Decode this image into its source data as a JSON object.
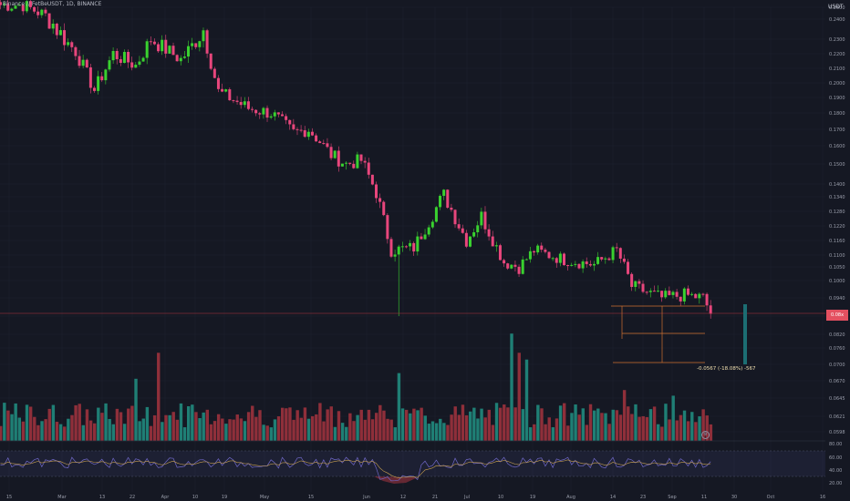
{
  "header": {
    "title": "Binance // FetBeUSDT, 1D, BINANCE",
    "currency": "USDT"
  },
  "last_price_label": "0.08x",
  "measure_label": "-0.0567 (-18.08%) -567",
  "colors": {
    "up": "#39d12f",
    "down": "#e8467c",
    "vol_up": "#1f7f75",
    "vol_down": "#8f2f3a",
    "bg": "#151823",
    "grid": "#1f2330",
    "price_line": "#b5343f",
    "fib": "#d07030",
    "rsi": "#7068c8",
    "rsi_ma": "#c8a050"
  },
  "chart_data": [
    {
      "type": "candlestick",
      "title": "",
      "y_axis_ticks": [
        "0.2500",
        "0.2400",
        "0.2300",
        "0.2200",
        "0.2100",
        "0.2000",
        "0.1900",
        "0.1800",
        "0.1700",
        "0.1600",
        "0.1500",
        "0.1400",
        "0.1340",
        "0.1280",
        "0.1220",
        "0.1160",
        "0.1100",
        "0.1050",
        "0.1000",
        "0.0940",
        "0.0880",
        "0.0820",
        "0.0760",
        "0.0700",
        "0.0670",
        "0.0645",
        "0.0621",
        "0.0598"
      ],
      "x_axis_ticks": [
        "15",
        "Mar",
        "13",
        "22",
        "Apr",
        "10",
        "19",
        "May",
        "15",
        "Jun",
        "12",
        "21",
        "Jul",
        "10",
        "19",
        "Aug",
        "14",
        "23",
        "Sep",
        "11",
        "30",
        "Oct",
        "16"
      ],
      "anchors": [
        {
          "d": 0,
          "p": 0.252
        },
        {
          "d": 6,
          "p": 0.252
        },
        {
          "d": 12,
          "p": 0.243
        },
        {
          "d": 20,
          "p": 0.222
        },
        {
          "d": 25,
          "p": 0.195
        },
        {
          "d": 30,
          "p": 0.22
        },
        {
          "d": 36,
          "p": 0.212
        },
        {
          "d": 40,
          "p": 0.23
        },
        {
          "d": 48,
          "p": 0.216
        },
        {
          "d": 54,
          "p": 0.235
        },
        {
          "d": 58,
          "p": 0.194
        },
        {
          "d": 66,
          "p": 0.183
        },
        {
          "d": 72,
          "p": 0.18
        },
        {
          "d": 78,
          "p": 0.168
        },
        {
          "d": 82,
          "p": 0.17
        },
        {
          "d": 88,
          "p": 0.155
        },
        {
          "d": 92,
          "p": 0.15
        },
        {
          "d": 96,
          "p": 0.152
        },
        {
          "d": 100,
          "p": 0.136
        },
        {
          "d": 104,
          "p": 0.112
        },
        {
          "d": 110,
          "p": 0.113
        },
        {
          "d": 118,
          "p": 0.135
        },
        {
          "d": 124,
          "p": 0.116
        },
        {
          "d": 128,
          "p": 0.126
        },
        {
          "d": 134,
          "p": 0.107
        },
        {
          "d": 138,
          "p": 0.105
        },
        {
          "d": 142,
          "p": 0.112
        },
        {
          "d": 150,
          "p": 0.108
        },
        {
          "d": 158,
          "p": 0.106
        },
        {
          "d": 164,
          "p": 0.112
        },
        {
          "d": 168,
          "p": 0.098
        },
        {
          "d": 176,
          "p": 0.094
        },
        {
          "d": 182,
          "p": 0.095
        },
        {
          "d": 187,
          "p": 0.094
        },
        {
          "d": 189,
          "p": 0.089
        }
      ],
      "special_wick": {
        "d": 106,
        "low": 0.088
      },
      "volume_spikes": [
        {
          "d": 42,
          "v": 0.78
        },
        {
          "d": 36,
          "v": 0.55
        },
        {
          "d": 106,
          "v": 0.6
        },
        {
          "d": 136,
          "v": 0.95
        },
        {
          "d": 138,
          "v": 0.78
        },
        {
          "d": 140,
          "v": 0.72
        },
        {
          "d": 166,
          "v": 0.45
        },
        {
          "d": 179,
          "v": 0.4
        }
      ],
      "rsi_levels": [
        "80.00",
        "60.00",
        "40.00",
        "20.00"
      ]
    }
  ]
}
